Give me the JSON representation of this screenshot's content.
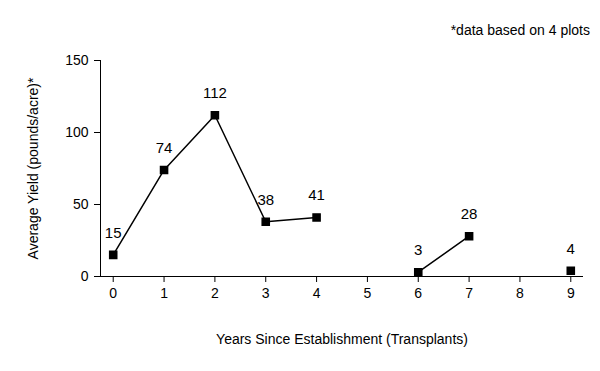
{
  "chart_data": {
    "type": "line",
    "annotations": [
      "*data based on 4 plots"
    ],
    "x_label": "Years Since Establishment (Transplants)",
    "y_label": "Average Yield (pounds/acre)*",
    "x": [
      0,
      1,
      2,
      3,
      4,
      5,
      6,
      7,
      8,
      9
    ],
    "values": [
      15,
      74,
      112,
      38,
      41,
      null,
      3,
      28,
      null,
      4
    ],
    "color": "#000000",
    "marker": "square",
    "line_style": "solid",
    "data_labels": true,
    "grid": false,
    "xlim": [
      -0.25,
      9.25
    ],
    "xticks": [
      0,
      1,
      2,
      3,
      4,
      5,
      6,
      7,
      8,
      9
    ],
    "ylim": [
      0,
      150
    ],
    "yticks": [
      0,
      50,
      100,
      150
    ]
  }
}
